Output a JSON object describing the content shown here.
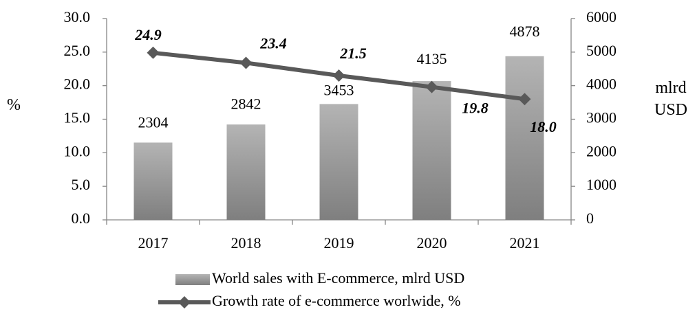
{
  "chart_data": {
    "type": "bar_line",
    "categories": [
      "2017",
      "2018",
      "2019",
      "2020",
      "2021"
    ],
    "y_label": "%",
    "y2_label": "mlrd USD",
    "series": [
      {
        "name": "World sales with E-commerce, mlrd USD",
        "type": "bar",
        "axis": "y2",
        "color": "#a6a6a6",
        "values": [
          2304,
          2842,
          3453,
          4135,
          4878
        ]
      },
      {
        "name": "Growth rate of e-commerce worlwide, %",
        "type": "line",
        "axis": "y",
        "color": "#595959",
        "values": [
          24.9,
          23.4,
          21.5,
          19.8,
          18.0
        ],
        "value_labels": [
          "24.9",
          "23.4",
          "21.5",
          "19.8",
          "18.0"
        ]
      }
    ],
    "ylim": [
      0,
      30
    ],
    "yticks": [
      {
        "value": 0,
        "label": "0.0"
      },
      {
        "value": 5,
        "label": "5.0"
      },
      {
        "value": 10,
        "label": "10.0"
      },
      {
        "value": 15,
        "label": "15.0"
      },
      {
        "value": 20,
        "label": "20.0"
      },
      {
        "value": 25,
        "label": "25.0"
      },
      {
        "value": 30,
        "label": "30.0"
      }
    ],
    "y2lim": [
      0,
      6000
    ],
    "y2ticks": [
      0,
      1000,
      2000,
      3000,
      4000,
      5000,
      6000
    ],
    "grid": false,
    "legend": "bottom"
  }
}
